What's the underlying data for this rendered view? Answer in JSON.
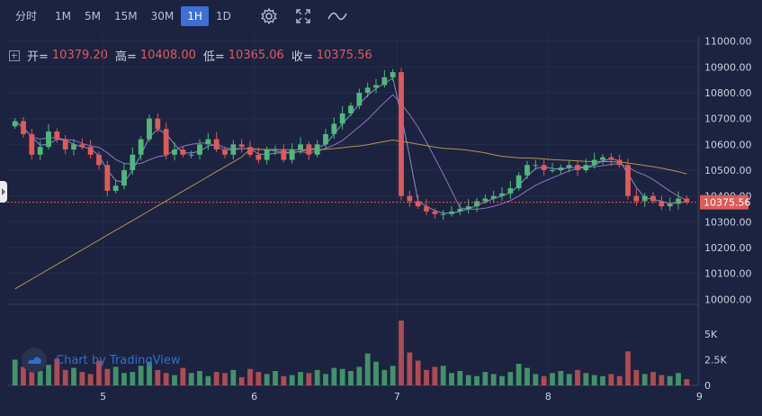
{
  "toolbar": {
    "intervals": [
      "分时",
      "1M",
      "5M",
      "15M",
      "30M",
      "1H",
      "1D"
    ],
    "active_interval": "1H",
    "icons": [
      "gear-icon",
      "fullscreen-icon",
      "line-style-icon"
    ]
  },
  "ohlc": {
    "open_label": "开=",
    "open_value": "10379.20",
    "high_label": "高=",
    "high_value": "10408.00",
    "low_label": "低=",
    "low_value": "10365.06",
    "close_label": "收=",
    "close_value": "10375.56"
  },
  "watermark": {
    "text": "Chart by TradingView"
  },
  "colors": {
    "background": "#1c2340",
    "up": "#4fb87a",
    "down": "#e05a5a",
    "ma1": "#8aa0e0",
    "ma2": "#a07ad0",
    "ma3": "#c8a050"
  },
  "chart_data": {
    "type": "candlestick",
    "price_axis": {
      "ticks": [
        "11000.00",
        "10900.00",
        "10800.00",
        "10700.00",
        "10600.00",
        "10500.00",
        "10400.00",
        "10300.00",
        "10200.00",
        "10100.00",
        "10000.00"
      ],
      "range": [
        9980,
        11020
      ]
    },
    "last_price_label": "10375.56",
    "last_price": 10375.56,
    "volume_axis": {
      "ticks": [
        "5K",
        "2.5K",
        "0"
      ],
      "range": [
        0,
        7000
      ]
    },
    "time_axis": {
      "labels": [
        "5",
        "6",
        "7",
        "8",
        "9"
      ]
    },
    "price_points": [
      10690,
      10640,
      10560,
      10590,
      10650,
      10620,
      10580,
      10600,
      10590,
      10560,
      10520,
      10420,
      10440,
      10500,
      10560,
      10620,
      10700,
      10660,
      10560,
      10580,
      10560,
      10560,
      10600,
      10620,
      10580,
      10560,
      10600,
      10590,
      10560,
      10540,
      10580,
      10580,
      10540,
      10580,
      10600,
      10560,
      10600,
      10640,
      10680,
      10720,
      10750,
      10800,
      10820,
      10830,
      10860,
      10880,
      10400,
      10380,
      10360,
      10340,
      10330,
      10330,
      10340,
      10350,
      10360,
      10380,
      10390,
      10400,
      10410,
      10430,
      10480,
      10520,
      10520,
      10500,
      10500,
      10510,
      10520,
      10500,
      10520,
      10540,
      10550,
      10540,
      10520,
      10400,
      10380,
      10400,
      10380,
      10360,
      10370,
      10390,
      10376
    ],
    "volumes": [
      2500,
      1800,
      2200,
      1400,
      2000,
      2600,
      1500,
      1700,
      1300,
      1100,
      2400,
      1600,
      1800,
      1200,
      1300,
      1900,
      2300,
      1500,
      1200,
      1000,
      1700,
      1200,
      1400,
      900,
      1300,
      1200,
      1500,
      800,
      1600,
      1300,
      1100,
      1400,
      900,
      1000,
      1300,
      1200,
      1500,
      1100,
      1700,
      1600,
      1400,
      1800,
      3100,
      2300,
      1500,
      1900,
      6300,
      3200,
      2400,
      1500,
      1800,
      1900,
      1200,
      1400,
      1000,
      900,
      1300,
      1100,
      900,
      1300,
      2100,
      1700,
      1100,
      900,
      1200,
      1400,
      1100,
      1500,
      1200,
      1000,
      900,
      1100,
      900,
      3300,
      1500,
      1100,
      1300,
      1000,
      900,
      1200,
      600
    ]
  }
}
